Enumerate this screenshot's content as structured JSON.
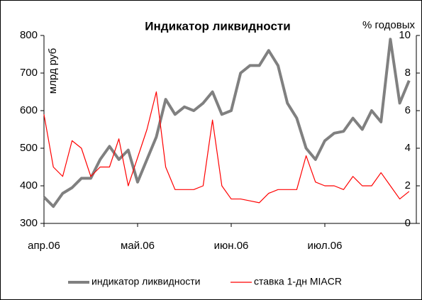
{
  "chart_data": {
    "type": "line",
    "title": "Индикатор ликвидности",
    "y_label": "млрд руб",
    "y2_label": "% годовых",
    "categories": [
      "апр.06",
      null,
      null,
      null,
      null,
      null,
      null,
      null,
      null,
      null,
      "май.06",
      null,
      null,
      null,
      null,
      null,
      null,
      null,
      null,
      null,
      "июн.06",
      null,
      null,
      null,
      null,
      null,
      null,
      null,
      null,
      null,
      "июл.06",
      null,
      null,
      null,
      null,
      null,
      null,
      null,
      null,
      null
    ],
    "series": [
      {
        "name": "индикатор ликвидности",
        "color": "#808080",
        "axis": "y",
        "values": [
          370,
          345,
          380,
          395,
          420,
          420,
          470,
          505,
          470,
          495,
          410,
          470,
          530,
          630,
          590,
          610,
          600,
          620,
          650,
          590,
          600,
          700,
          720,
          720,
          760,
          720,
          620,
          580,
          500,
          470,
          520,
          540,
          545,
          580,
          550,
          600,
          570,
          790,
          620,
          680
        ]
      },
      {
        "name": "ставка 1-дн MIACR",
        "color": "#ff0000",
        "axis": "y2",
        "values": [
          5.8,
          3,
          2.5,
          4.4,
          4,
          2.5,
          3,
          3,
          4.5,
          2,
          3.5,
          5,
          7,
          3,
          1.8,
          1.8,
          1.8,
          2,
          5.5,
          2,
          1.3,
          1.3,
          1.2,
          1.1,
          1.6,
          1.8,
          1.8,
          1.8,
          3.6,
          2.2,
          2,
          2,
          1.8,
          2.5,
          2,
          2,
          2.7,
          2,
          1.3,
          1.7
        ]
      }
    ],
    "ylim": [
      300,
      800
    ],
    "yticks": [
      300,
      400,
      500,
      600,
      700,
      800
    ],
    "y2lim": [
      0,
      10
    ],
    "y2ticks": [
      0,
      2,
      4,
      6,
      8,
      10
    ],
    "legend": "bottom"
  }
}
